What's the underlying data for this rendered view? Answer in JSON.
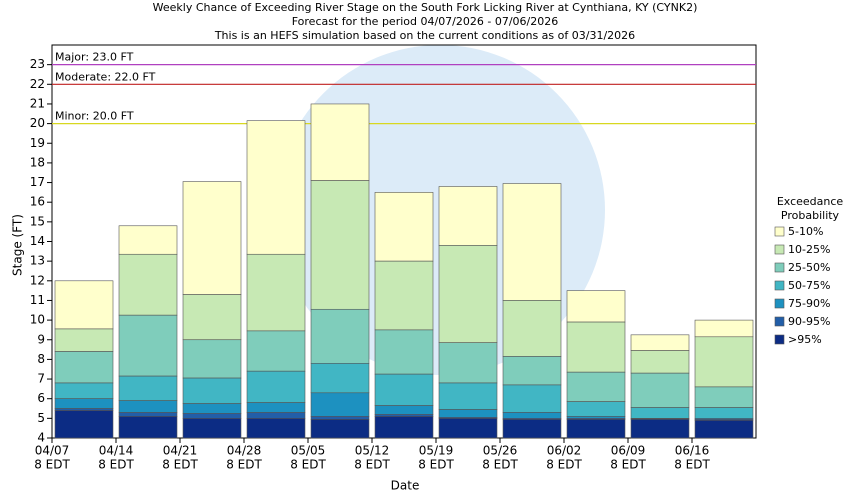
{
  "chart_data": {
    "type": "range-bar",
    "title": "Weekly Chance of Exceeding River Stage on the South Fork Licking River at Cynthiana, KY (CYNK2)",
    "subtitle": [
      "Forecast for the period 04/07/2026 - 07/06/2026",
      "This is an HEFS simulation based on the current conditions as of 03/31/2026"
    ],
    "x_label": "Date",
    "y_label": "Stage (FT)",
    "categories": [
      "04/07",
      "04/14",
      "04/21",
      "04/28",
      "05/05",
      "05/12",
      "05/19",
      "05/26",
      "06/02",
      "06/09",
      "06/16"
    ],
    "time_label": "8 EDT",
    "legend_title": [
      "Exceedance",
      "Probability"
    ],
    "legend": "right",
    "ylim": [
      4,
      24
    ],
    "yticks": [
      4,
      5,
      6,
      7,
      8,
      9,
      10,
      11,
      12,
      13,
      14,
      15,
      16,
      17,
      18,
      19,
      20,
      21,
      22,
      23
    ],
    "grid": false,
    "thresholds": [
      {
        "label": "Major: 23.0 FT",
        "value": 23,
        "color": "#b040c0"
      },
      {
        "label": "Moderate: 22.0 FT",
        "value": 22,
        "color": "#c02020"
      },
      {
        "label": "Minor: 20.0 FT",
        "value": 20,
        "color": "#d8d820"
      }
    ],
    "series": [
      {
        "name": "5-10%",
        "color": "#ffffcc",
        "values": [
          12.0,
          14.8,
          17.05,
          20.15,
          21.0,
          16.5,
          16.8,
          16.95,
          11.5,
          9.25,
          10.0
        ]
      },
      {
        "name": "10-25%",
        "color": "#c7e9b4",
        "values": [
          9.55,
          13.35,
          11.3,
          13.35,
          17.1,
          13.0,
          13.8,
          11.0,
          9.9,
          8.45,
          9.15
        ]
      },
      {
        "name": "25-50%",
        "color": "#7fcdbb",
        "values": [
          8.4,
          10.25,
          9.0,
          9.45,
          10.55,
          9.5,
          8.85,
          8.15,
          7.35,
          7.3,
          6.6
        ]
      },
      {
        "name": "50-75%",
        "color": "#41b6c4",
        "values": [
          6.8,
          7.15,
          7.05,
          7.4,
          7.8,
          7.25,
          6.8,
          6.7,
          5.85,
          5.55,
          5.55
        ]
      },
      {
        "name": "75-90%",
        "color": "#1d91c0",
        "values": [
          6.0,
          5.9,
          5.75,
          5.8,
          6.3,
          5.65,
          5.45,
          5.3,
          5.1,
          5.0,
          5.0
        ]
      },
      {
        "name": "90-95%",
        "color": "#225ea8",
        "values": [
          5.5,
          5.3,
          5.25,
          5.3,
          5.1,
          5.2,
          5.05,
          5.0,
          5.0,
          4.97,
          4.95
        ]
      },
      {
        "name": ">95%",
        "color": "#0c2c84",
        "values": [
          5.4,
          5.1,
          5.0,
          5.0,
          4.95,
          5.1,
          5.0,
          4.95,
          4.95,
          4.95,
          4.9
        ]
      }
    ]
  }
}
